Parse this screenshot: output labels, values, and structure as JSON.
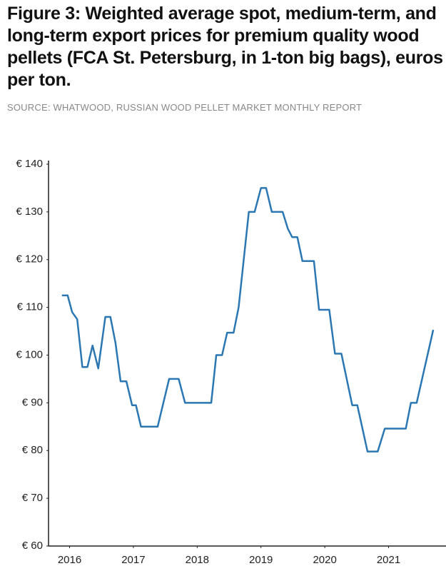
{
  "chart_data": {
    "type": "line",
    "title": "Figure 3: Weighted average spot, medium-term, and long-term export prices for premium quality wood pellets (FCA St. Petersburg, in 1-ton big bags), euros per ton.",
    "subtitle": "SOURCE: WHATWOOD, RUSSIAN WOOD PELLET MARKET MONTHLY REPORT",
    "color": "#2b77b3",
    "x": [
      2015.88,
      2015.97,
      2016.04,
      2016.12,
      2016.2,
      2016.28,
      2016.36,
      2016.45,
      2016.56,
      2016.64,
      2016.72,
      2016.8,
      2016.89,
      2016.98,
      2017.04,
      2017.12,
      2017.38,
      2017.56,
      2017.71,
      2017.81,
      2018.22,
      2018.3,
      2018.39,
      2018.47,
      2018.57,
      2018.65,
      2018.81,
      2018.9,
      2019.0,
      2019.08,
      2019.17,
      2019.34,
      2019.42,
      2019.49,
      2019.57,
      2019.65,
      2019.83,
      2019.91,
      2020.07,
      2020.16,
      2020.26,
      2020.43,
      2020.51,
      2020.67,
      2020.83,
      2020.94,
      2021.27,
      2021.35,
      2021.44,
      2021.7
    ],
    "values": [
      112.5,
      112.5,
      109,
      107.5,
      97.5,
      97.5,
      102,
      97.2,
      108,
      108,
      102.5,
      94.5,
      94.5,
      89.5,
      89.5,
      85,
      85,
      95,
      95,
      90,
      90,
      100,
      100,
      104.7,
      104.7,
      110,
      130,
      130,
      135,
      135,
      130,
      130,
      126.5,
      124.7,
      124.7,
      119.7,
      119.7,
      109.5,
      109.5,
      100.3,
      100.3,
      89.5,
      89.5,
      79.8,
      79.8,
      84.6,
      84.6,
      90,
      90,
      105.3
    ],
    "xlim": [
      2015.67,
      2021.9
    ],
    "xticks": [
      2016,
      2017,
      2018,
      2019,
      2020,
      2021
    ],
    "ylim": [
      60,
      140
    ],
    "yticks": [
      {
        "value": 60,
        "label": "€ 60"
      },
      {
        "value": 70,
        "label": "€ 70"
      },
      {
        "value": 80,
        "label": "€ 80"
      },
      {
        "value": 90,
        "label": "€ 90"
      },
      {
        "value": 100,
        "label": "€ 100"
      },
      {
        "value": 110,
        "label": "€ 110"
      },
      {
        "value": 120,
        "label": "€ 120"
      },
      {
        "value": 130,
        "label": "€ 130"
      },
      {
        "value": 140,
        "label": "€ 140"
      }
    ],
    "grid": false
  }
}
